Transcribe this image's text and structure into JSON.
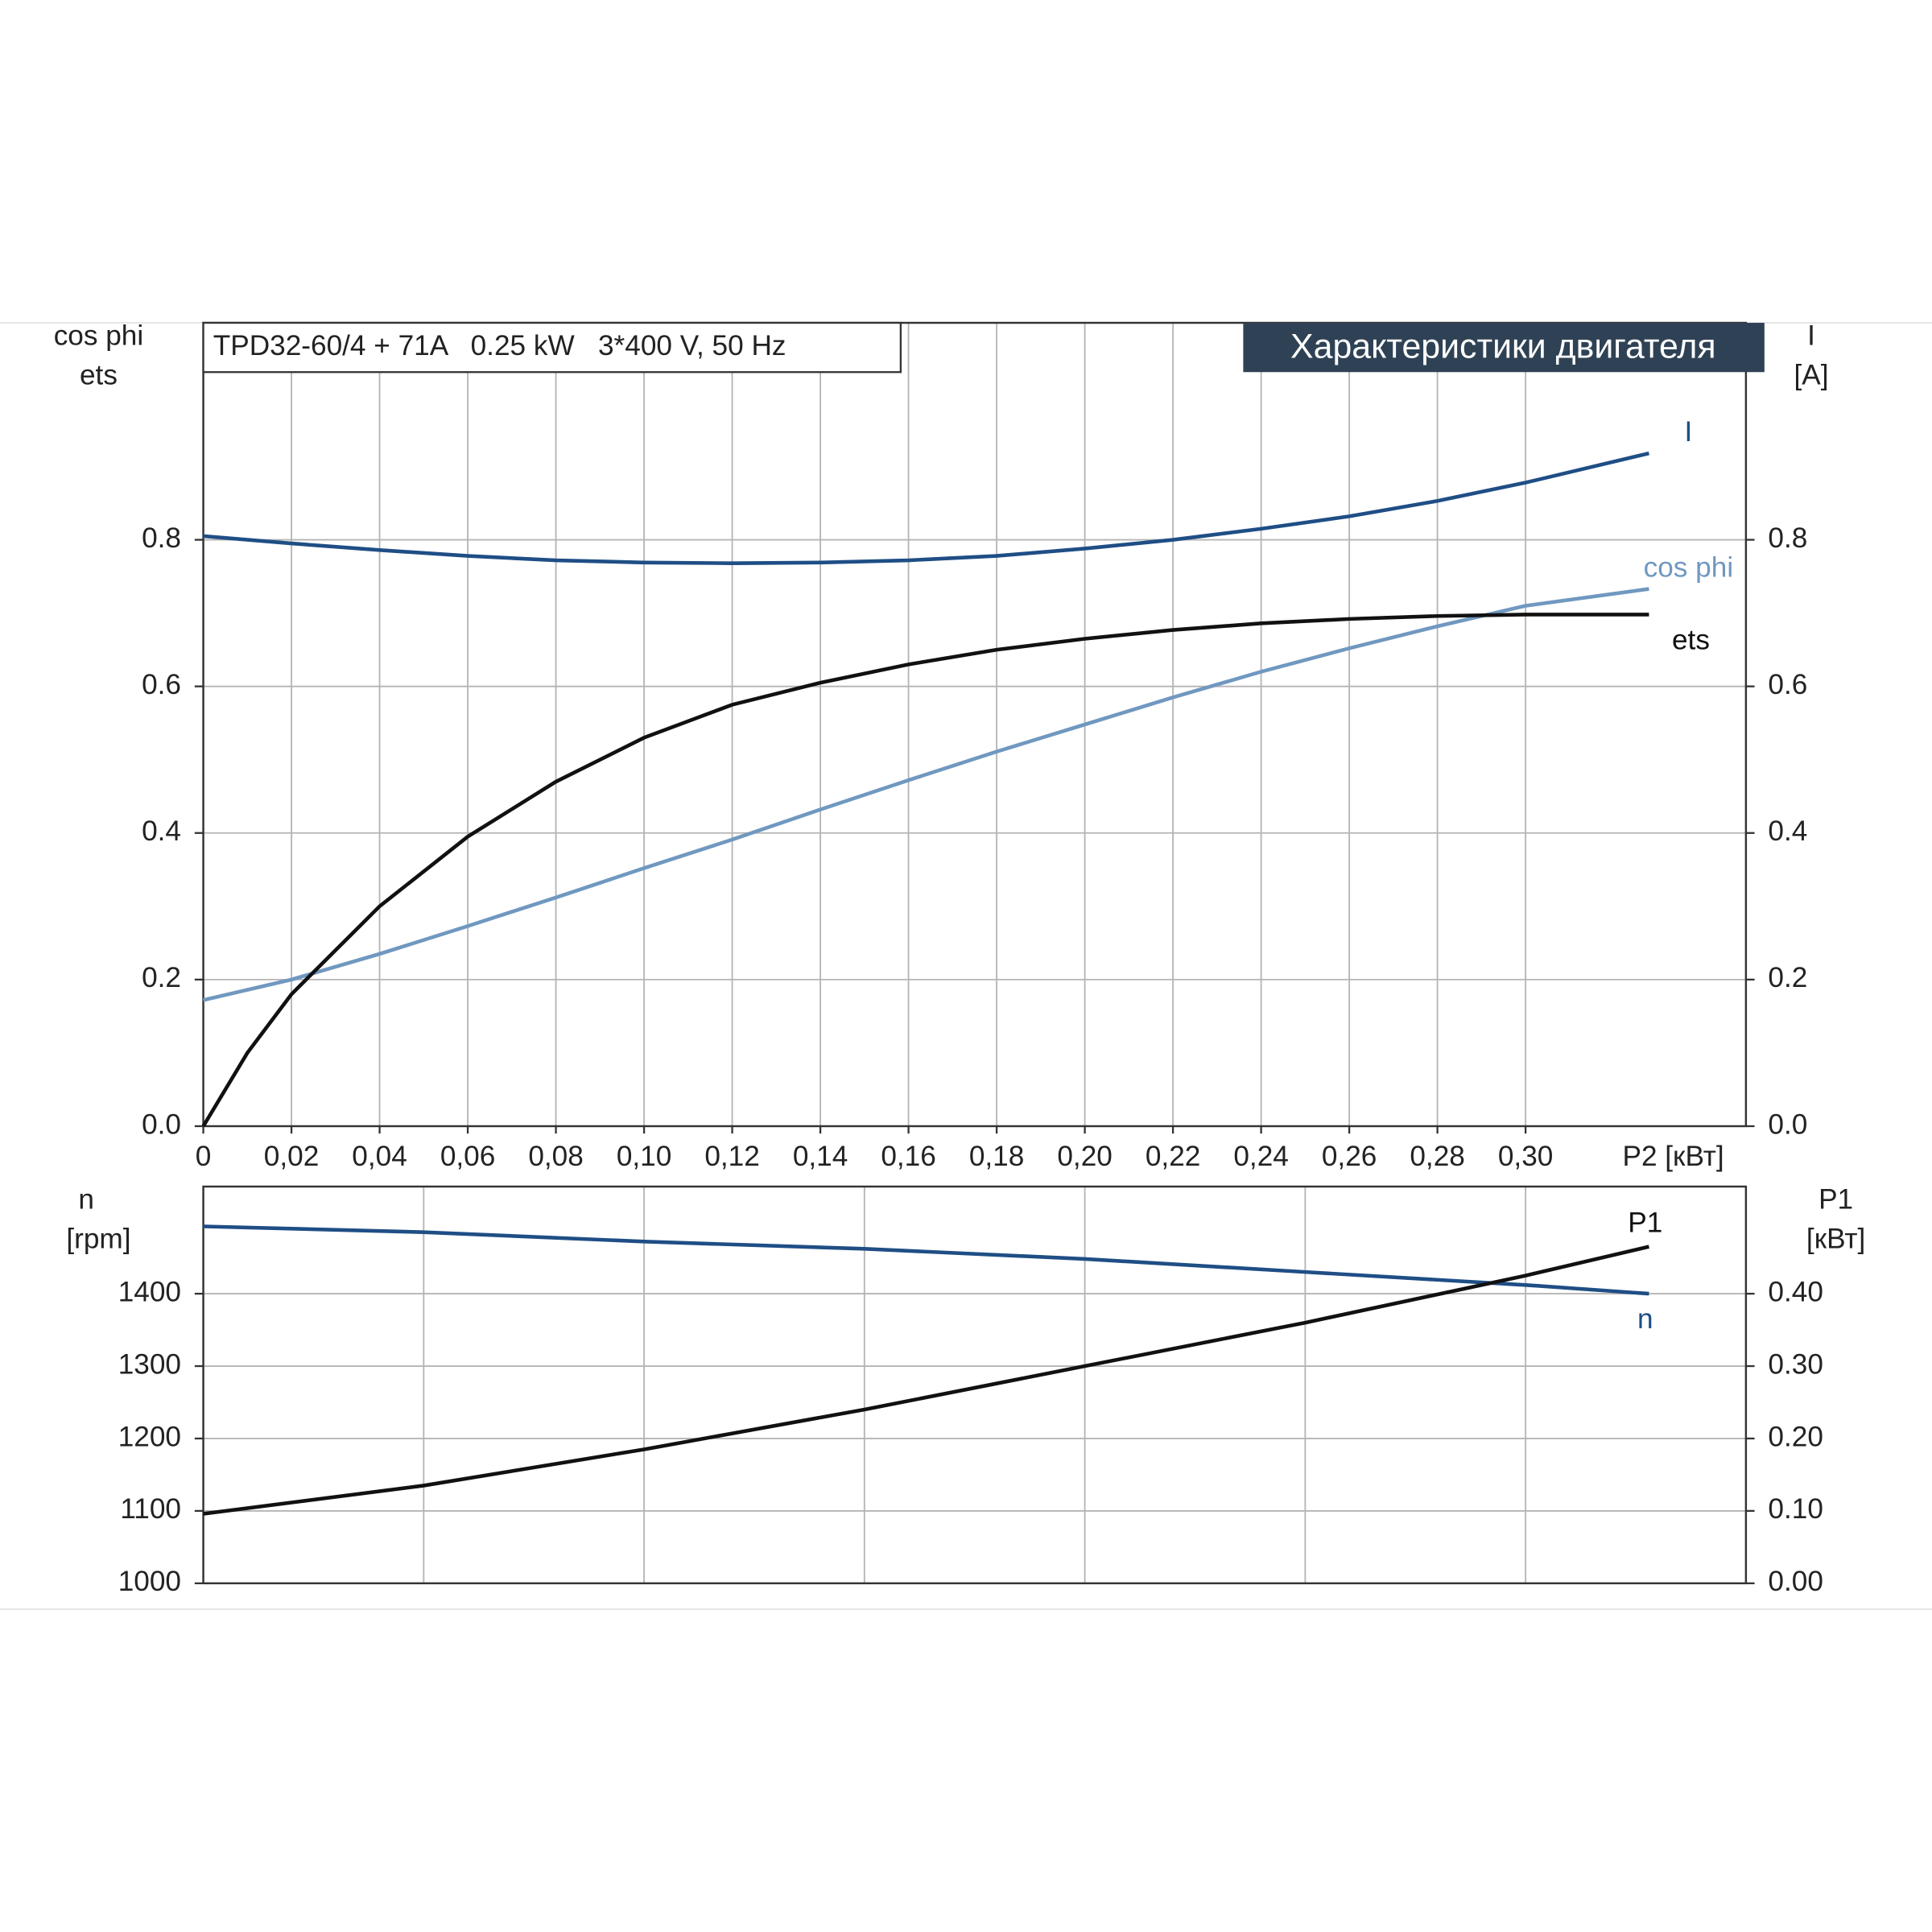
{
  "chart_data": [
    {
      "type": "line",
      "title": "Характеристики двигателя",
      "subtitle": "TPD32-60/4 + 71A   0.25 kW   3*400 V, 50 Hz",
      "x_label": "P2 [кВт]",
      "y_label": [
        "cos phi",
        "ets"
      ],
      "y2_label": [
        "I",
        "[A]"
      ],
      "xlim": [
        0,
        0.35
      ],
      "xticks": [
        0,
        {
          "value": 0.02,
          "label": "0,02"
        },
        {
          "value": 0.04,
          "label": "0,04"
        },
        {
          "value": 0.06,
          "label": "0,06"
        },
        {
          "value": 0.08,
          "label": "0,08"
        },
        {
          "value": 0.1,
          "label": "0,10"
        },
        {
          "value": 0.12,
          "label": "0,12"
        },
        {
          "value": 0.14,
          "label": "0,14"
        },
        {
          "value": 0.16,
          "label": "0,16"
        },
        {
          "value": 0.18,
          "label": "0,18"
        },
        {
          "value": 0.2,
          "label": "0,20"
        },
        {
          "value": 0.22,
          "label": "0,22"
        },
        {
          "value": 0.24,
          "label": "0,24"
        },
        {
          "value": 0.26,
          "label": "0,26"
        },
        {
          "value": 0.28,
          "label": "0,28"
        },
        {
          "value": 0.3,
          "label": "0,30"
        }
      ],
      "ylim": [
        0,
        1.096
      ],
      "yticks": [
        {
          "value": 0,
          "label": "0.0"
        },
        0.2,
        0.4,
        0.6,
        0.8
      ],
      "y2lim": [
        0,
        1.096
      ],
      "y2ticks": [
        {
          "value": 0,
          "label": "0.0"
        },
        0.2,
        0.4,
        0.6,
        0.8
      ],
      "grid": true,
      "series": [
        {
          "name": "I",
          "color": "#1f4e85",
          "axis": "y2",
          "x": [
            0,
            0.02,
            0.04,
            0.06,
            0.08,
            0.1,
            0.12,
            0.14,
            0.16,
            0.18,
            0.2,
            0.22,
            0.24,
            0.26,
            0.28,
            0.3,
            0.328
          ],
          "values": [
            0.805,
            0.795,
            0.786,
            0.778,
            0.772,
            0.769,
            0.768,
            0.769,
            0.772,
            0.778,
            0.788,
            0.8,
            0.815,
            0.832,
            0.853,
            0.878,
            0.918
          ]
        },
        {
          "name": "cos phi",
          "color": "#7098c0",
          "x": [
            0,
            0.02,
            0.04,
            0.06,
            0.08,
            0.1,
            0.12,
            0.14,
            0.16,
            0.18,
            0.2,
            0.22,
            0.24,
            0.26,
            0.28,
            0.3,
            0.328
          ],
          "values": [
            0.172,
            0.2,
            0.235,
            0.273,
            0.312,
            0.352,
            0.391,
            0.432,
            0.472,
            0.511,
            0.548,
            0.585,
            0.62,
            0.652,
            0.682,
            0.71,
            0.733
          ]
        },
        {
          "name": "ets",
          "color": "#111111",
          "x": [
            0,
            0.01,
            0.02,
            0.04,
            0.06,
            0.08,
            0.1,
            0.12,
            0.14,
            0.16,
            0.18,
            0.2,
            0.22,
            0.24,
            0.26,
            0.28,
            0.3,
            0.328
          ],
          "values": [
            0,
            0.1,
            0.18,
            0.3,
            0.395,
            0.47,
            0.53,
            0.575,
            0.605,
            0.63,
            0.65,
            0.665,
            0.677,
            0.686,
            0.692,
            0.696,
            0.698,
            0.698
          ]
        }
      ]
    },
    {
      "type": "line",
      "y_label": [
        "n",
        "[rpm]"
      ],
      "y2_label": [
        "P1",
        "[кВт]"
      ],
      "xlim": [
        0,
        0.35
      ],
      "xgrid": [
        0.05,
        0.1,
        0.15,
        0.2,
        0.25,
        0.3
      ],
      "ylim": [
        1000,
        1548
      ],
      "yticks": [
        1000,
        1100,
        1200,
        1300,
        1400
      ],
      "y2lim": [
        0,
        0.548
      ],
      "y2ticks": [
        {
          "value": 0,
          "label": "0.00"
        },
        {
          "value": 0.1,
          "label": "0.10"
        },
        {
          "value": 0.2,
          "label": "0.20"
        },
        {
          "value": 0.3,
          "label": "0.30"
        },
        {
          "value": 0.4,
          "label": "0.40"
        }
      ],
      "grid": true,
      "series": [
        {
          "name": "n",
          "color": "#1f4e85",
          "x": [
            0,
            0.05,
            0.1,
            0.15,
            0.2,
            0.25,
            0.3,
            0.328
          ],
          "values": [
            1493,
            1485,
            1472,
            1462,
            1448,
            1430,
            1412,
            1400
          ]
        },
        {
          "name": "P1",
          "color": "#111111",
          "axis": "y2",
          "x": [
            0,
            0.05,
            0.1,
            0.15,
            0.2,
            0.25,
            0.3,
            0.328
          ],
          "values": [
            0.096,
            0.135,
            0.185,
            0.24,
            0.3,
            0.36,
            0.425,
            0.465
          ]
        }
      ]
    }
  ]
}
